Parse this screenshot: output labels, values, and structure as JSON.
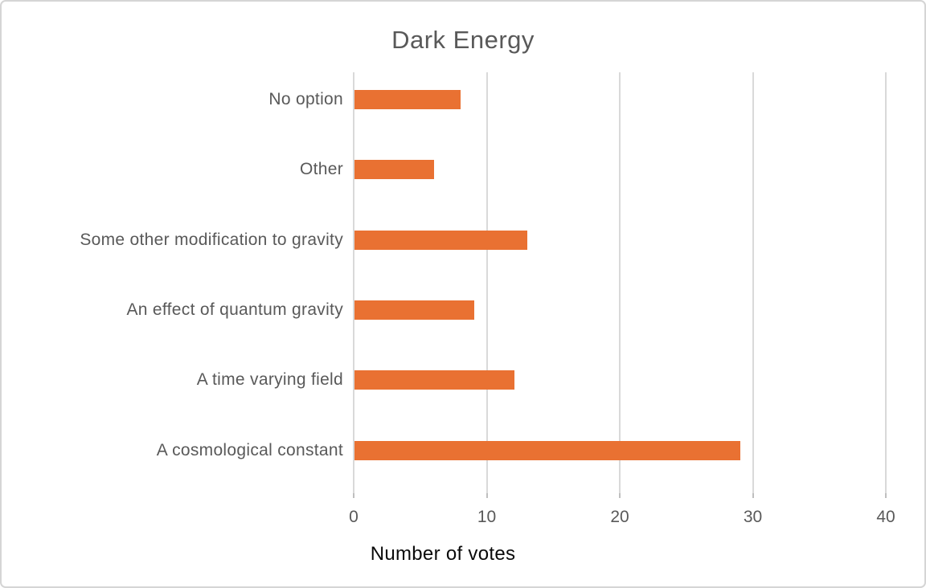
{
  "chart_data": {
    "type": "bar",
    "orientation": "horizontal",
    "title": "Dark Energy",
    "xlabel": "Number of votes",
    "categories": [
      "No option",
      "Other",
      "Some other modification to gravity",
      "An effect of quantum gravity",
      "A time varying field",
      "A cosmological constant"
    ],
    "values": [
      8,
      6,
      13,
      9,
      12,
      29
    ],
    "xlim": [
      0,
      40
    ],
    "xticks": [
      0,
      10,
      20,
      30,
      40
    ],
    "gridlines": "vertical",
    "legend": "none"
  },
  "colors": {
    "bar": "#E97132",
    "title_text": "#595959",
    "category_text": "#595959",
    "tick_text": "#595959",
    "axis_title_text": "#0A0A0A",
    "gridline": "#D9D9D9",
    "tick_mark": "#BFBFBF",
    "chart_border": "#D5D5D5",
    "background": "#FFFFFF"
  }
}
